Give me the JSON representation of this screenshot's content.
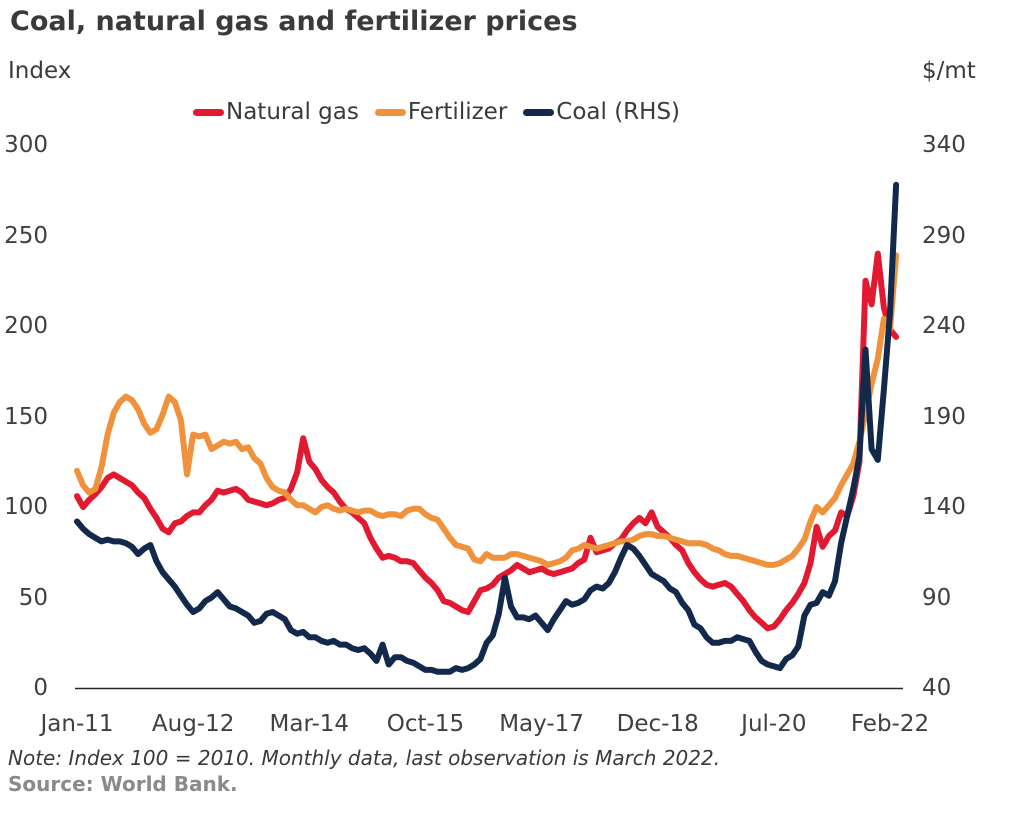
{
  "title": "Coal, natural gas and fertilizer prices",
  "note": "Note: Index 100 = 2010. Monthly data, last observation is March 2022.",
  "source": "Source: World Bank.",
  "left_axis": {
    "label": "Index",
    "ticks": [
      300,
      250,
      200,
      150,
      100,
      50,
      0
    ]
  },
  "right_axis": {
    "label": "$/mt",
    "ticks": [
      340,
      290,
      240,
      190,
      140,
      90,
      40
    ]
  },
  "x_axis": {
    "tick_labels": [
      "Jan-11",
      "Aug-12",
      "Mar-14",
      "Oct-15",
      "May-17",
      "Dec-18",
      "Jul-20",
      "Feb-22"
    ],
    "tick_month_index": [
      0,
      19,
      38,
      57,
      76,
      95,
      114,
      133
    ]
  },
  "legend": [
    {
      "label": "Natural gas",
      "color": "#e11931"
    },
    {
      "label": "Fertilizer",
      "color": "#f0913c"
    },
    {
      "label": "Coal (RHS)",
      "color": "#13294b"
    }
  ],
  "colors": {
    "natural_gas": "#e11931",
    "fertilizer": "#f0913c",
    "coal": "#13294b",
    "text": "#3a3a3a",
    "axis_line": "#262626"
  },
  "chart_data": {
    "type": "line",
    "title": "Coal, natural gas and fertilizer prices",
    "frequency": "monthly",
    "x_start": "2011-01",
    "x_end": "2022-03",
    "left_ylim": [
      0,
      300
    ],
    "right_ylim": [
      40,
      340
    ],
    "grid": false,
    "legend_position": "top-center",
    "series": [
      {
        "name": "Natural gas",
        "axis": "left",
        "unit": "index (2010=100)",
        "color": "#e11931",
        "values": [
          106,
          100,
          104,
          107,
          111,
          116,
          118,
          116,
          114,
          112,
          108,
          105,
          99,
          94,
          88,
          86,
          91,
          92,
          95,
          97,
          97,
          101,
          104,
          109,
          108,
          109,
          110,
          108,
          104,
          103,
          102,
          101,
          102,
          104,
          105,
          110,
          119,
          138,
          125,
          121,
          115,
          111,
          108,
          103,
          99,
          97,
          94,
          91,
          83,
          77,
          72,
          73,
          72,
          70,
          70,
          69,
          65,
          61,
          58,
          54,
          48,
          47,
          45,
          43,
          42,
          48,
          54,
          55,
          57,
          61,
          63,
          65,
          68,
          66,
          64,
          65,
          66,
          64,
          63,
          64,
          65,
          66,
          69,
          71,
          83,
          75,
          76,
          77,
          80,
          82,
          87,
          91,
          94,
          91,
          97,
          89,
          86,
          83,
          79,
          76,
          69,
          64,
          60,
          57,
          56,
          57,
          58,
          56,
          52,
          48,
          43,
          39,
          36,
          33,
          34,
          38,
          43,
          47,
          52,
          58,
          69,
          89,
          78,
          84,
          87,
          97,
          95,
          106,
          125,
          225,
          212,
          240,
          210,
          198,
          194
        ]
      },
      {
        "name": "Fertilizer",
        "axis": "left",
        "unit": "index (2010=100)",
        "color": "#f0913c",
        "values": [
          120,
          112,
          108,
          110,
          122,
          140,
          152,
          158,
          161,
          159,
          154,
          146,
          141,
          143,
          151,
          161,
          158,
          148,
          118,
          140,
          139,
          140,
          132,
          134,
          136,
          135,
          136,
          132,
          133,
          127,
          124,
          116,
          111,
          109,
          108,
          104,
          101,
          101,
          99,
          97,
          100,
          101,
          99,
          98,
          99,
          98,
          97,
          98,
          98,
          96,
          95,
          96,
          96,
          95,
          98,
          99,
          99,
          96,
          94,
          93,
          88,
          83,
          79,
          78,
          77,
          71,
          70,
          74,
          72,
          72,
          72,
          74,
          74,
          73,
          72,
          71,
          70,
          68,
          69,
          70,
          72,
          76,
          77,
          79,
          78,
          77,
          78,
          79,
          80,
          81,
          81,
          82,
          84,
          85,
          85,
          84,
          84,
          83,
          82,
          81,
          80,
          80,
          80,
          79,
          77,
          76,
          74,
          73,
          73,
          72,
          71,
          70,
          69,
          68,
          68,
          69,
          71,
          73,
          77,
          82,
          92,
          100,
          97,
          101,
          105,
          112,
          118,
          124,
          136,
          152,
          168,
          182,
          204,
          198,
          239
        ]
      },
      {
        "name": "Coal (RHS)",
        "axis": "right",
        "unit": "$/mt",
        "color": "#13294b",
        "values": [
          132,
          128,
          125,
          123,
          121,
          122,
          121,
          121,
          120,
          118,
          114,
          117,
          119,
          110,
          104,
          100,
          96,
          91,
          86,
          82,
          84,
          88,
          90,
          93,
          89,
          85,
          84,
          82,
          80,
          76,
          77,
          81,
          82,
          80,
          78,
          72,
          70,
          71,
          68,
          68,
          66,
          65,
          66,
          64,
          64,
          62,
          61,
          62,
          59,
          55,
          64,
          53,
          57,
          57,
          55,
          54,
          52,
          50,
          50,
          49,
          49,
          49,
          51,
          50,
          51,
          53,
          56,
          65,
          69,
          81,
          101,
          85,
          79,
          79,
          78,
          80,
          76,
          72,
          78,
          83,
          88,
          86,
          87,
          89,
          94,
          96,
          95,
          98,
          104,
          112,
          119,
          117,
          113,
          108,
          103,
          101,
          99,
          95,
          93,
          87,
          83,
          75,
          73,
          68,
          65,
          65,
          66,
          66,
          68,
          67,
          66,
          60,
          55,
          53,
          52,
          51,
          56,
          58,
          63,
          80,
          86,
          87,
          93,
          91,
          99,
          120,
          135,
          150,
          168,
          227,
          172,
          166,
          205,
          247,
          318
        ]
      }
    ]
  }
}
